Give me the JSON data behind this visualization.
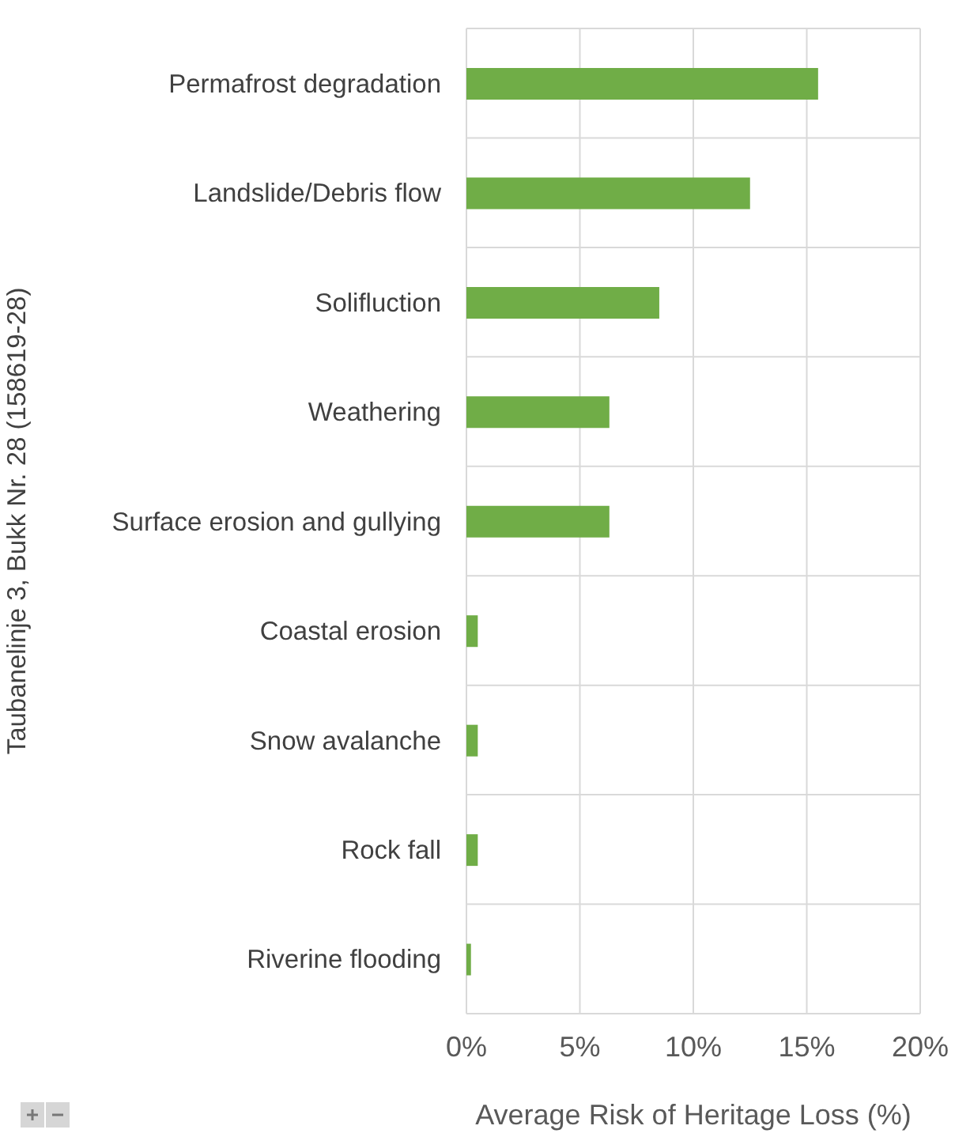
{
  "chart_data": {
    "type": "bar",
    "orientation": "horizontal",
    "ylabel": "Taubanelinje 3, Bukk Nr. 28 (158619-28)",
    "xlabel": "Average Risk of Heritage Loss (%)",
    "categories": [
      "Permafrost degradation",
      "Landslide/Debris flow",
      "Solifluction",
      "Weathering",
      "Surface erosion and gullying",
      "Coastal erosion",
      "Snow avalanche",
      "Rock fall",
      "Riverine flooding"
    ],
    "values": [
      15.5,
      12.5,
      8.5,
      6.3,
      6.3,
      0.5,
      0.5,
      0.5,
      0.2
    ],
    "color": "#70ad47",
    "xlim": [
      0,
      20
    ],
    "xticks": [
      {
        "value": 0,
        "label": "0%"
      },
      {
        "value": 5,
        "label": "5%"
      },
      {
        "value": 10,
        "label": "10%"
      },
      {
        "value": 15,
        "label": "15%"
      },
      {
        "value": 20,
        "label": "20%"
      }
    ],
    "grid": true
  }
}
